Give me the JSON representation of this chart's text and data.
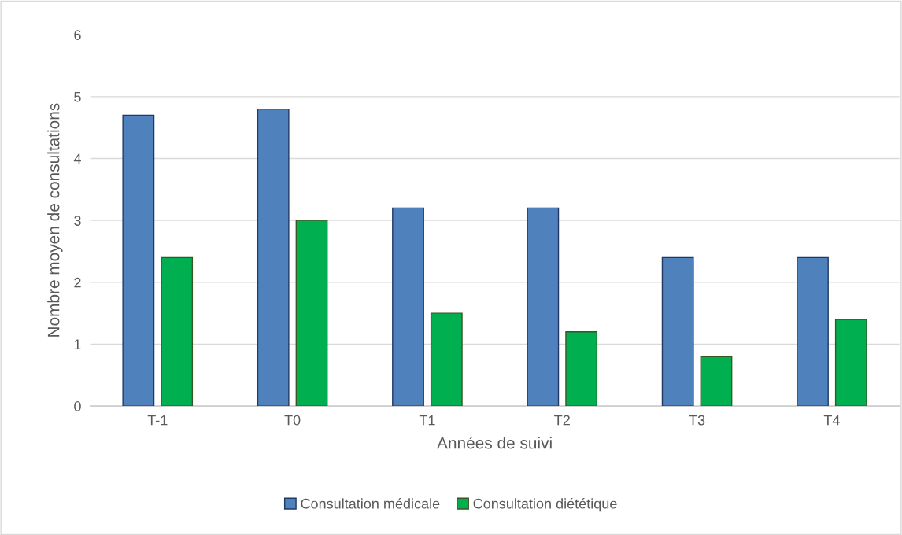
{
  "chart_data": {
    "type": "bar",
    "xlabel": "Années de suivi",
    "ylabel": "Nombre moyen de consultations",
    "categories": [
      "T-1",
      "T0",
      "T1",
      "T2",
      "T3",
      "T4"
    ],
    "series": [
      {
        "name": "Consultation médicale",
        "color": "#4f81bd",
        "values": [
          4.7,
          4.8,
          3.2,
          3.2,
          2.4,
          2.4
        ]
      },
      {
        "name": "Consultation diététique",
        "color": "#00b050",
        "values": [
          2.4,
          3.0,
          1.5,
          1.2,
          0.8,
          1.4
        ]
      }
    ],
    "ylim": [
      0,
      6
    ],
    "yticks": [
      0,
      1,
      2,
      3,
      4,
      5,
      6
    ],
    "grid": "y",
    "legend": "bottom"
  }
}
